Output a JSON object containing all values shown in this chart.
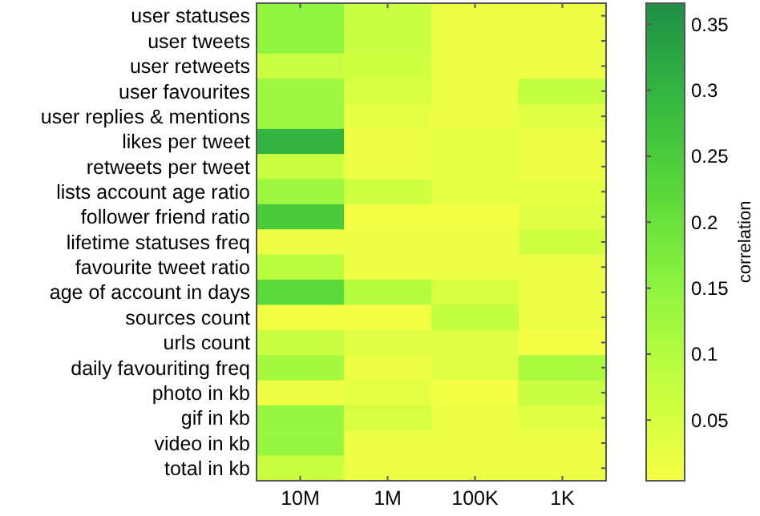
{
  "chart_data": {
    "type": "heatmap",
    "categories": [
      "10M",
      "1M",
      "100K",
      "1K"
    ],
    "y_categories": [
      "user statuses",
      "user tweets",
      "user retweets",
      "user favourites",
      "user replies & mentions",
      "likes per tweet",
      "retweets per tweet",
      "lists account age ratio",
      "follower friend ratio",
      "lifetime statuses freq",
      "favourite tweet ratio",
      "age of account in days",
      "sources count",
      "urls count",
      "daily favouriting freq",
      "photo in kb",
      "gif in kb",
      "video in kb",
      "total in kb"
    ],
    "cells": [
      [
        0.15,
        0.07,
        0.02,
        0.02
      ],
      [
        0.15,
        0.07,
        0.02,
        0.02
      ],
      [
        0.07,
        0.06,
        0.02,
        0.02
      ],
      [
        0.13,
        0.05,
        0.02,
        0.08
      ],
      [
        0.13,
        0.03,
        0.02,
        0.04
      ],
      [
        0.3,
        0.02,
        0.03,
        0.02
      ],
      [
        0.07,
        0.02,
        0.03,
        0.02
      ],
      [
        0.13,
        0.06,
        0.03,
        0.03
      ],
      [
        0.25,
        0.01,
        0.01,
        0.04
      ],
      [
        0.02,
        0.02,
        0.02,
        0.06
      ],
      [
        0.09,
        0.02,
        0.02,
        0.02
      ],
      [
        0.22,
        0.1,
        0.05,
        0.02
      ],
      [
        0.01,
        0.01,
        0.08,
        0.02
      ],
      [
        0.07,
        0.04,
        0.04,
        0.01
      ],
      [
        0.12,
        0.02,
        0.04,
        0.11
      ],
      [
        0.02,
        0.03,
        0.01,
        0.07
      ],
      [
        0.14,
        0.05,
        0.02,
        0.04
      ],
      [
        0.14,
        0.02,
        0.02,
        0.02
      ],
      [
        0.07,
        0.02,
        0.02,
        0.02
      ]
    ],
    "clim": [
      0.004,
      0.366
    ],
    "cticks": [
      0.05,
      0.1,
      0.15,
      0.2,
      0.25,
      0.3,
      0.35
    ],
    "clabel": "correlation"
  }
}
